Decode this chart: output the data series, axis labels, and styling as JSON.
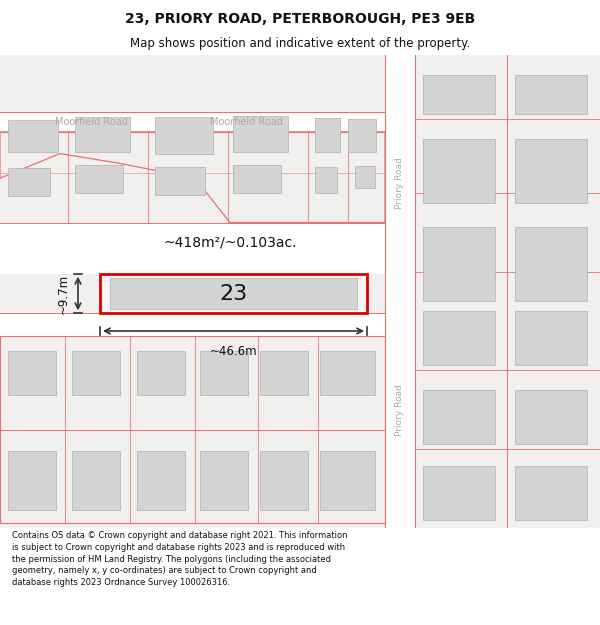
{
  "title_line1": "23, PRIORY ROAD, PETERBOROUGH, PE3 9EB",
  "title_line2": "Map shows position and indicative extent of the property.",
  "footer_text": "Contains OS data © Crown copyright and database right 2021. This information is subject to Crown copyright and database rights 2023 and is reproduced with the permission of HM Land Registry. The polygons (including the associated geometry, namely x, y co-ordinates) are subject to Crown copyright and database rights 2023 Ordnance Survey 100026316.",
  "area_text": "~418m²/~0.103ac.",
  "width_text": "~46.6m",
  "height_text": "~9.7m",
  "number_text": "23",
  "priory_road_label": "Priory Road",
  "moorfield_label1": "Moorfield Road",
  "moorfield_label2": "Moorfield Road",
  "map_bg": "#f2efef",
  "road_fill": "#f2efef",
  "road_line": "#e87070",
  "building_fill": "#d4d4d4",
  "building_edge": "#b0b0b0",
  "highlight_edge": "#dd0000",
  "highlight_fill": "#f8f5f5",
  "title_fontsize": 10,
  "subtitle_fontsize": 8.5,
  "footer_fontsize": 6.0,
  "label_fontsize": 7.0,
  "road_label_fontsize": 6.5,
  "area_fontsize": 10,
  "dim_fontsize": 8.5,
  "number_fontsize": 16
}
